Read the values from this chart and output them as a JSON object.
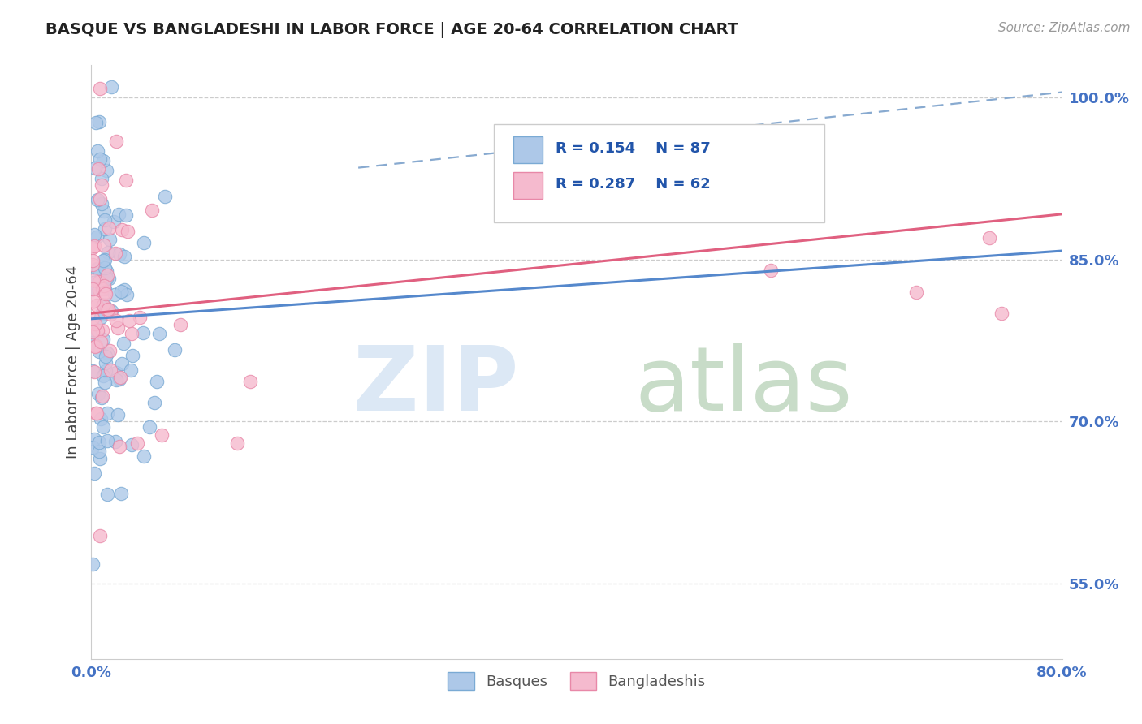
{
  "title": "BASQUE VS BANGLADESHI IN LABOR FORCE | AGE 20-64 CORRELATION CHART",
  "source": "Source: ZipAtlas.com",
  "ylabel": "In Labor Force | Age 20-64",
  "xlim": [
    0.0,
    0.8
  ],
  "ylim": [
    0.48,
    1.03
  ],
  "xtick_positions": [
    0.0,
    0.8
  ],
  "xticklabels": [
    "0.0%",
    "80.0%"
  ],
  "ytick_positions": [
    0.55,
    0.7,
    0.85,
    1.0
  ],
  "yticklabels": [
    "55.0%",
    "70.0%",
    "85.0%",
    "100.0%"
  ],
  "basque_fill": "#adc8e8",
  "basque_edge": "#7aaad4",
  "bangladeshi_fill": "#f5bace",
  "bangladeshi_edge": "#e888a8",
  "basque_line_color": "#5588cc",
  "bangladeshi_line_color": "#e06080",
  "dash_line_color": "#88aad0",
  "R_basque": 0.154,
  "N_basque": 87,
  "R_bangladeshi": 0.287,
  "N_bangladeshi": 62,
  "title_color": "#222222",
  "source_color": "#999999",
  "ylabel_color": "#444444",
  "tick_color": "#4472c4",
  "background_color": "#ffffff",
  "basque_trend": [
    0.0,
    0.795,
    0.8,
    0.858
  ],
  "bangladeshi_trend": [
    0.0,
    0.8,
    0.8,
    0.892
  ],
  "dash_trend": [
    0.22,
    0.935,
    0.8,
    1.005
  ],
  "watermark_zip_color": "#dce8f5",
  "watermark_atlas_color": "#c8dcc8",
  "legend_box_color": "#f0f0f0",
  "legend_box_edge": "#cccccc"
}
